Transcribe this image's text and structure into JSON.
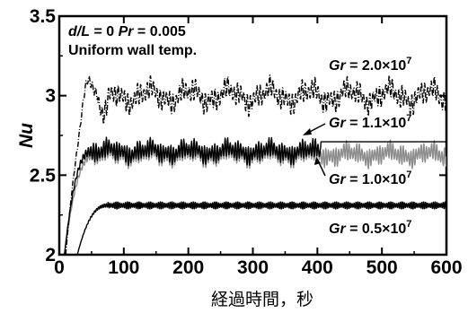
{
  "chart_data": {
    "type": "line",
    "xlabel": "経過時間，秒",
    "ylabel": "Nu",
    "xlim": [
      0,
      600
    ],
    "ylim": [
      2,
      3.5
    ],
    "x_ticks": [
      0,
      100,
      200,
      300,
      400,
      500,
      600
    ],
    "x_tick_labels": [
      "0",
      "100",
      "200",
      "300",
      "400",
      "500",
      "600"
    ],
    "y_ticks": [
      2,
      2.5,
      3,
      3.5
    ],
    "y_tick_labels": [
      "2",
      "2.5",
      "3",
      "3.5"
    ],
    "grid": false,
    "annotations": {
      "line1_a": "d/L",
      "line1_b": " = 0   ",
      "line1_c": "Pr",
      "line1_d": " = 0.005",
      "line2": "Uniform wall temp."
    },
    "series": [
      {
        "label_var": "Gr",
        "label_rest": " = 2.0×10",
        "label_exp": "7",
        "color": "#000000",
        "dash": "6,2,1,2",
        "t_start": 10,
        "t_settle": 60,
        "start_value": 2.0,
        "overshoot_value": 3.1,
        "overshoot_t": 45,
        "dip_value": 2.85,
        "dip_t": 70,
        "plateau": 3.0,
        "amplitude": 0.07,
        "wander": 0.04,
        "period": 5
      },
      {
        "label_var": "Gr",
        "label_rest": " = 1.1×10",
        "label_exp": "7",
        "color": "#000000",
        "dash": "",
        "t_start": 8,
        "t_settle": 50,
        "start_value": 2.0,
        "plateau": 2.65,
        "amplitude": 0.06,
        "wander": 0.02,
        "period": 4,
        "steady_after": 405,
        "steady_value": 2.71
      },
      {
        "label_var": "Gr",
        "label_rest": " = 1.0×10",
        "label_exp": "7",
        "color": "#8c8c8c",
        "dash": "",
        "t_start": 8,
        "t_settle": 55,
        "start_value": 2.0,
        "plateau": 2.63,
        "amplitude": 0.06,
        "wander": 0.02,
        "period": 4
      },
      {
        "label_var": "Gr",
        "label_rest": " = 0.5×10",
        "label_exp": "7",
        "color": "#000000",
        "dash": "",
        "t_start": 28,
        "t_settle": 75,
        "start_value": 2.0,
        "plateau": 2.31,
        "amplitude": 0.025,
        "wander": 0.0,
        "period": 3
      }
    ]
  }
}
